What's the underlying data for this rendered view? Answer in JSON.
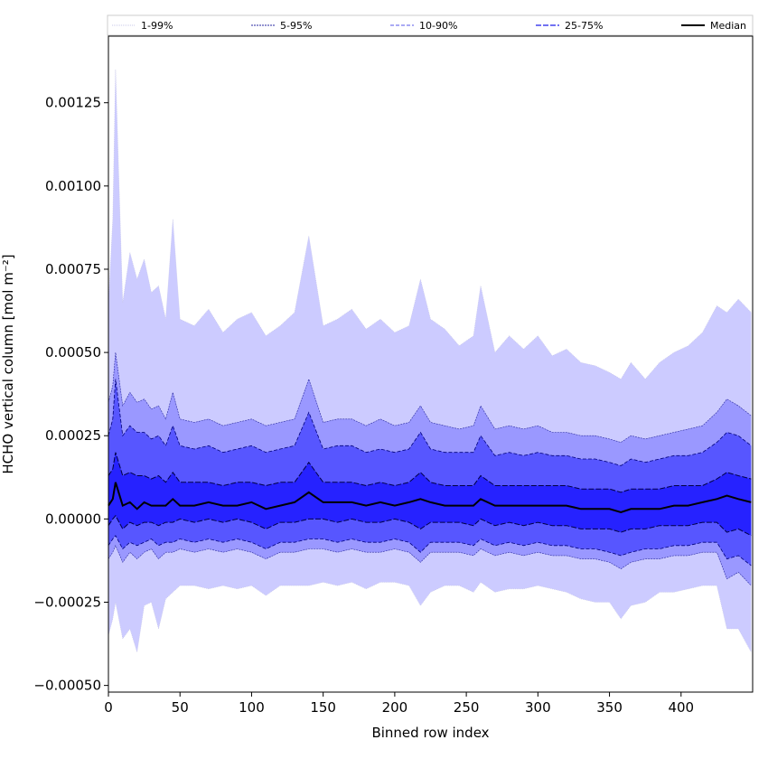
{
  "chart_data": {
    "type": "area",
    "xlabel": "Binned row index",
    "ylabel": "HCHO vertical column [mol m⁻²]",
    "xlim": [
      0,
      450
    ],
    "ylim": [
      -0.00052,
      0.00145
    ],
    "x_ticks": [
      0,
      50,
      100,
      150,
      200,
      250,
      300,
      350,
      400
    ],
    "x_tick_labels": [
      "0",
      "50",
      "100",
      "150",
      "200",
      "250",
      "300",
      "350",
      "400"
    ],
    "y_ticks": [
      -0.0005,
      -0.00025,
      0.0,
      0.00025,
      0.0005,
      0.00075,
      0.001,
      0.00125
    ],
    "y_tick_labels": [
      "−0.00050",
      "−0.00025",
      "0.00000",
      "0.00025",
      "0.00050",
      "0.00075",
      "0.00100",
      "0.00125"
    ],
    "legend": {
      "placement": "top",
      "entries": [
        "1-99%",
        "5-95%",
        "10-90%",
        "25-75%",
        "Median"
      ]
    },
    "colors": {
      "band_1_99": "#cccbff",
      "band_5_95": "#9a98ff",
      "band_10_90": "#5756ff",
      "band_25_75": "#2622ff",
      "line_1_99": "#c8c8e8",
      "line_5_95": "#2a2aa0",
      "line_10_90": "#00007a",
      "line_25_75": "#000044",
      "median": "#000000"
    },
    "x": [
      0,
      3,
      5,
      10,
      15,
      20,
      25,
      30,
      35,
      40,
      45,
      50,
      60,
      70,
      80,
      90,
      100,
      110,
      120,
      130,
      140,
      150,
      160,
      170,
      180,
      190,
      200,
      210,
      218,
      225,
      235,
      245,
      255,
      260,
      270,
      280,
      290,
      300,
      310,
      320,
      330,
      340,
      350,
      358,
      365,
      375,
      385,
      395,
      405,
      415,
      425,
      432,
      440,
      449
    ],
    "series": [
      {
        "name": "1-99%",
        "lower": [
          -0.00035,
          -0.0003,
          -0.00025,
          -0.00036,
          -0.00033,
          -0.0004,
          -0.00026,
          -0.00025,
          -0.00033,
          -0.00024,
          -0.00022,
          -0.0002,
          -0.0002,
          -0.00021,
          -0.0002,
          -0.00021,
          -0.0002,
          -0.00023,
          -0.0002,
          -0.0002,
          -0.0002,
          -0.00019,
          -0.0002,
          -0.00019,
          -0.00021,
          -0.00019,
          -0.00019,
          -0.0002,
          -0.00026,
          -0.00022,
          -0.0002,
          -0.0002,
          -0.00022,
          -0.00019,
          -0.00022,
          -0.00021,
          -0.00021,
          -0.0002,
          -0.00021,
          -0.00022,
          -0.00024,
          -0.00025,
          -0.00025,
          -0.0003,
          -0.00026,
          -0.00025,
          -0.00022,
          -0.00022,
          -0.00021,
          -0.0002,
          -0.0002,
          -0.00033,
          -0.00033,
          -0.0004
        ],
        "upper": [
          0.00065,
          0.0009,
          0.00135,
          0.00065,
          0.0008,
          0.00072,
          0.00078,
          0.00068,
          0.0007,
          0.0006,
          0.0009,
          0.0006,
          0.00058,
          0.00063,
          0.00056,
          0.0006,
          0.00062,
          0.00055,
          0.00058,
          0.00062,
          0.00085,
          0.00058,
          0.0006,
          0.00063,
          0.00057,
          0.0006,
          0.00056,
          0.00058,
          0.00072,
          0.0006,
          0.00057,
          0.00052,
          0.00055,
          0.0007,
          0.0005,
          0.00055,
          0.00051,
          0.00055,
          0.00049,
          0.00051,
          0.00047,
          0.00046,
          0.00044,
          0.00042,
          0.00047,
          0.00042,
          0.00047,
          0.0005,
          0.00052,
          0.00056,
          0.00064,
          0.00062,
          0.00066,
          0.00062
        ]
      },
      {
        "name": "5-95%",
        "lower": [
          -0.00012,
          -0.0001,
          -8e-05,
          -0.00013,
          -0.0001,
          -0.00012,
          -0.0001,
          -9e-05,
          -0.00012,
          -0.0001,
          -0.0001,
          -9e-05,
          -0.0001,
          -9e-05,
          -0.0001,
          -9e-05,
          -0.0001,
          -0.00012,
          -0.0001,
          -0.0001,
          -9e-05,
          -9e-05,
          -0.0001,
          -9e-05,
          -0.0001,
          -0.0001,
          -9e-05,
          -0.0001,
          -0.00013,
          -0.0001,
          -0.0001,
          -0.0001,
          -0.00011,
          -9e-05,
          -0.00011,
          -0.0001,
          -0.00011,
          -0.0001,
          -0.00011,
          -0.00011,
          -0.00012,
          -0.00012,
          -0.00013,
          -0.00015,
          -0.00013,
          -0.00012,
          -0.00012,
          -0.00011,
          -0.00011,
          -0.0001,
          -0.0001,
          -0.00018,
          -0.00016,
          -0.0002
        ],
        "upper": [
          0.00035,
          0.0004,
          0.0005,
          0.00034,
          0.00038,
          0.00035,
          0.00036,
          0.00033,
          0.00034,
          0.0003,
          0.00038,
          0.0003,
          0.00029,
          0.0003,
          0.00028,
          0.00029,
          0.0003,
          0.00028,
          0.00029,
          0.0003,
          0.00042,
          0.00029,
          0.0003,
          0.0003,
          0.00028,
          0.0003,
          0.00028,
          0.00029,
          0.00034,
          0.00029,
          0.00028,
          0.00027,
          0.00028,
          0.00034,
          0.00027,
          0.00028,
          0.00027,
          0.00028,
          0.00026,
          0.00026,
          0.00025,
          0.00025,
          0.00024,
          0.00023,
          0.00025,
          0.00024,
          0.00025,
          0.00026,
          0.00027,
          0.00028,
          0.00032,
          0.00036,
          0.00034,
          0.00031
        ]
      },
      {
        "name": "10-90%",
        "lower": [
          -8e-05,
          -6e-05,
          -5e-05,
          -9e-05,
          -7e-05,
          -8e-05,
          -7e-05,
          -6e-05,
          -8e-05,
          -7e-05,
          -7e-05,
          -6e-05,
          -7e-05,
          -6e-05,
          -7e-05,
          -6e-05,
          -7e-05,
          -9e-05,
          -7e-05,
          -7e-05,
          -6e-05,
          -6e-05,
          -7e-05,
          -6e-05,
          -7e-05,
          -7e-05,
          -6e-05,
          -7e-05,
          -0.0001,
          -7e-05,
          -7e-05,
          -7e-05,
          -8e-05,
          -6e-05,
          -8e-05,
          -7e-05,
          -8e-05,
          -7e-05,
          -8e-05,
          -8e-05,
          -9e-05,
          -9e-05,
          -0.0001,
          -0.00011,
          -0.0001,
          -9e-05,
          -9e-05,
          -8e-05,
          -8e-05,
          -7e-05,
          -7e-05,
          -0.00012,
          -0.00011,
          -0.00014
        ],
        "upper": [
          0.00025,
          0.0003,
          0.00042,
          0.00025,
          0.00028,
          0.00026,
          0.00026,
          0.00024,
          0.00025,
          0.00022,
          0.00028,
          0.00022,
          0.00021,
          0.00022,
          0.0002,
          0.00021,
          0.00022,
          0.0002,
          0.00021,
          0.00022,
          0.00032,
          0.00021,
          0.00022,
          0.00022,
          0.0002,
          0.00021,
          0.0002,
          0.00021,
          0.00026,
          0.00021,
          0.0002,
          0.0002,
          0.0002,
          0.00025,
          0.00019,
          0.0002,
          0.00019,
          0.0002,
          0.00019,
          0.00019,
          0.00018,
          0.00018,
          0.00017,
          0.00016,
          0.00018,
          0.00017,
          0.00018,
          0.00019,
          0.00019,
          0.0002,
          0.00023,
          0.00026,
          0.00025,
          0.00022
        ]
      },
      {
        "name": "25-75%",
        "lower": [
          -2e-05,
          0.0,
          1e-05,
          -3e-05,
          -1e-05,
          -2e-05,
          -1e-05,
          -1e-05,
          -2e-05,
          -1e-05,
          -1e-05,
          0.0,
          -1e-05,
          0.0,
          -1e-05,
          0.0,
          -1e-05,
          -3e-05,
          -1e-05,
          -1e-05,
          0.0,
          0.0,
          -1e-05,
          0.0,
          -1e-05,
          -1e-05,
          0.0,
          -1e-05,
          -3e-05,
          -1e-05,
          -1e-05,
          -1e-05,
          -2e-05,
          0.0,
          -2e-05,
          -1e-05,
          -2e-05,
          -1e-05,
          -2e-05,
          -2e-05,
          -3e-05,
          -3e-05,
          -3e-05,
          -4e-05,
          -3e-05,
          -3e-05,
          -2e-05,
          -2e-05,
          -2e-05,
          -1e-05,
          -1e-05,
          -4e-05,
          -3e-05,
          -5e-05
        ],
        "upper": [
          0.00013,
          0.00015,
          0.0002,
          0.00013,
          0.00014,
          0.00013,
          0.00013,
          0.00012,
          0.00013,
          0.00011,
          0.00014,
          0.00011,
          0.00011,
          0.00011,
          0.0001,
          0.00011,
          0.00011,
          0.0001,
          0.00011,
          0.00011,
          0.00017,
          0.00011,
          0.00011,
          0.00011,
          0.0001,
          0.00011,
          0.0001,
          0.00011,
          0.00014,
          0.00011,
          0.0001,
          0.0001,
          0.0001,
          0.00013,
          0.0001,
          0.0001,
          0.0001,
          0.0001,
          0.0001,
          0.0001,
          9e-05,
          9e-05,
          9e-05,
          8e-05,
          9e-05,
          9e-05,
          9e-05,
          0.0001,
          0.0001,
          0.0001,
          0.00012,
          0.00014,
          0.00013,
          0.00012
        ]
      },
      {
        "name": "Median",
        "values": [
          4e-05,
          6e-05,
          0.00011,
          4e-05,
          5e-05,
          3e-05,
          5e-05,
          4e-05,
          4e-05,
          4e-05,
          6e-05,
          4e-05,
          4e-05,
          5e-05,
          4e-05,
          4e-05,
          5e-05,
          3e-05,
          4e-05,
          5e-05,
          8e-05,
          5e-05,
          5e-05,
          5e-05,
          4e-05,
          5e-05,
          4e-05,
          5e-05,
          6e-05,
          5e-05,
          4e-05,
          4e-05,
          4e-05,
          6e-05,
          4e-05,
          4e-05,
          4e-05,
          4e-05,
          4e-05,
          4e-05,
          3e-05,
          3e-05,
          3e-05,
          2e-05,
          3e-05,
          3e-05,
          3e-05,
          4e-05,
          4e-05,
          5e-05,
          6e-05,
          7e-05,
          6e-05,
          5e-05
        ]
      }
    ]
  }
}
